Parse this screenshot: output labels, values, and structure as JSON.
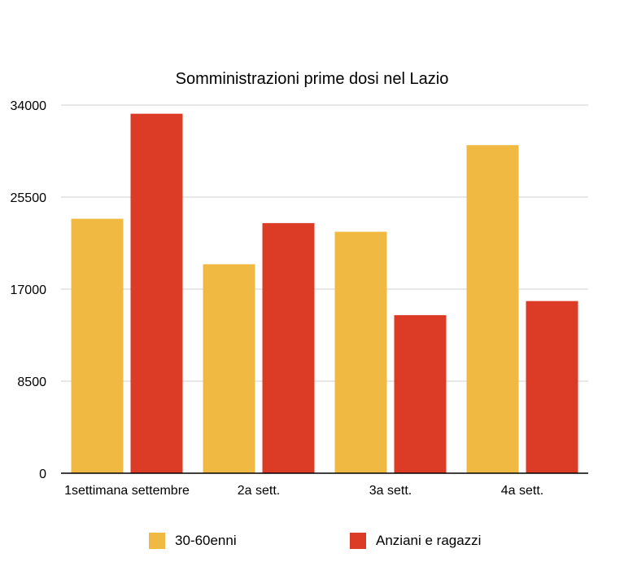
{
  "chart_data": {
    "type": "bar",
    "title": "Somministrazioni prime dosi nel Lazio",
    "xlabel": "",
    "ylabel": "",
    "categories": [
      "1settimana settembre",
      "2a sett.",
      "3a sett.",
      "4a sett."
    ],
    "series": [
      {
        "name": "30-60enni",
        "color": "#F0B942",
        "values": [
          23500,
          19300,
          22300,
          30300
        ]
      },
      {
        "name": "Anziani e ragazzi",
        "color": "#DC3B26",
        "values": [
          33200,
          23100,
          14600,
          15900
        ]
      }
    ],
    "ylim": [
      0,
      34000
    ],
    "yticks": [
      "0",
      "8500",
      "17000",
      "25500",
      "34000"
    ],
    "grid": true,
    "legend": "bottom"
  }
}
